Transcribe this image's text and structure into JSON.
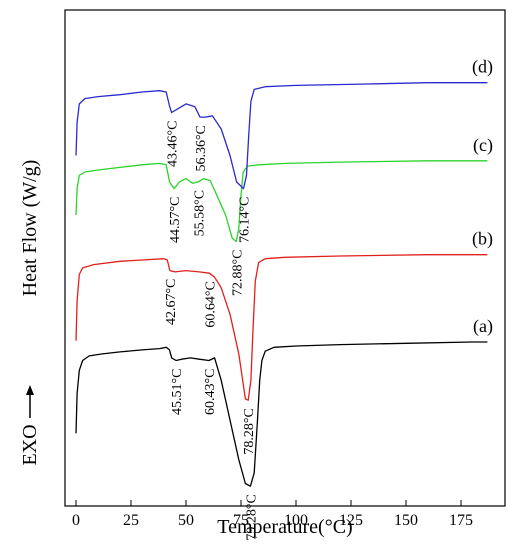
{
  "chart_data": {
    "type": "line",
    "xlabel": "Temperature(°C)",
    "ylabel": "Heat Flow (W/g)",
    "exo_label": "EXO",
    "xlim": [
      -5,
      195
    ],
    "xticks": [
      0,
      25,
      50,
      75,
      100,
      125,
      150,
      175
    ],
    "xtick_labels": [
      "0",
      "25",
      "50",
      "75",
      "100",
      "125",
      "150",
      "175"
    ],
    "y_tick_labels_shown": false,
    "grid": false,
    "legend": "none",
    "series": [
      {
        "name": "(a)",
        "color": "#000000",
        "points": [
          [
            0,
            360
          ],
          [
            0.5,
            420
          ],
          [
            1.5,
            455
          ],
          [
            3,
            470
          ],
          [
            6,
            477
          ],
          [
            12,
            480
          ],
          [
            20,
            483
          ],
          [
            30,
            486
          ],
          [
            38,
            488
          ],
          [
            41,
            490
          ],
          [
            42.5,
            486
          ],
          [
            43.5,
            474
          ],
          [
            45.51,
            470
          ],
          [
            48,
            472
          ],
          [
            52,
            474
          ],
          [
            56,
            472
          ],
          [
            60.43,
            470
          ],
          [
            63,
            474
          ],
          [
            66,
            440
          ],
          [
            70,
            380
          ],
          [
            74,
            320
          ],
          [
            77,
            284
          ],
          [
            79.28,
            280
          ],
          [
            81,
            300
          ],
          [
            82.5,
            380
          ],
          [
            83.5,
            440
          ],
          [
            84.5,
            470
          ],
          [
            86,
            484
          ],
          [
            90,
            490
          ],
          [
            100,
            492
          ],
          [
            120,
            494
          ],
          [
            150,
            496
          ],
          [
            180,
            498
          ],
          [
            187,
            498
          ]
        ]
      },
      {
        "name": "(b)",
        "color": "#e0201b",
        "points": [
          [
            0,
            500
          ],
          [
            0.5,
            560
          ],
          [
            1.5,
            600
          ],
          [
            3,
            610
          ],
          [
            8,
            615
          ],
          [
            20,
            620
          ],
          [
            30,
            622
          ],
          [
            40,
            624
          ],
          [
            41.5,
            622
          ],
          [
            42.67,
            606
          ],
          [
            45,
            604
          ],
          [
            50,
            606
          ],
          [
            56,
            604
          ],
          [
            60.64,
            602
          ],
          [
            63,
            596
          ],
          [
            66,
            580
          ],
          [
            70,
            540
          ],
          [
            74,
            480
          ],
          [
            77,
            412
          ],
          [
            78.28,
            410
          ],
          [
            79.5,
            440
          ],
          [
            80.5,
            520
          ],
          [
            81.5,
            590
          ],
          [
            83,
            618
          ],
          [
            86,
            624
          ],
          [
            95,
            626
          ],
          [
            120,
            628
          ],
          [
            160,
            630
          ],
          [
            187,
            630
          ]
        ]
      },
      {
        "name": "(c)",
        "color": "#2ad42a",
        "points": [
          [
            0,
            690
          ],
          [
            0.5,
            730
          ],
          [
            1.5,
            750
          ],
          [
            4,
            755
          ],
          [
            10,
            758
          ],
          [
            20,
            762
          ],
          [
            30,
            766
          ],
          [
            38,
            768
          ],
          [
            41,
            766
          ],
          [
            42.5,
            740
          ],
          [
            44.57,
            730
          ],
          [
            47,
            740
          ],
          [
            50,
            745
          ],
          [
            53,
            738
          ],
          [
            55.58,
            740
          ],
          [
            58,
            745
          ],
          [
            61,
            742
          ],
          [
            64,
            720
          ],
          [
            68,
            690
          ],
          [
            71,
            655
          ],
          [
            72.88,
            650
          ],
          [
            74,
            670
          ],
          [
            75,
            720
          ],
          [
            76,
            755
          ],
          [
            78,
            764
          ],
          [
            83,
            766
          ],
          [
            95,
            768
          ],
          [
            120,
            770
          ],
          [
            160,
            772
          ],
          [
            187,
            772
          ]
        ]
      },
      {
        "name": "(d)",
        "color": "#2a2ad0",
        "points": [
          [
            0,
            780
          ],
          [
            0.5,
            830
          ],
          [
            1.5,
            858
          ],
          [
            4,
            866
          ],
          [
            10,
            869
          ],
          [
            20,
            872
          ],
          [
            30,
            876
          ],
          [
            38,
            878
          ],
          [
            41,
            876
          ],
          [
            42.5,
            855
          ],
          [
            43.46,
            845
          ],
          [
            46,
            850
          ],
          [
            50,
            858
          ],
          [
            54,
            854
          ],
          [
            56.36,
            838
          ],
          [
            59,
            838
          ],
          [
            62,
            840
          ],
          [
            66,
            820
          ],
          [
            70,
            780
          ],
          [
            73,
            740
          ],
          [
            76.14,
            730
          ],
          [
            77.5,
            750
          ],
          [
            78.5,
            810
          ],
          [
            79.5,
            862
          ],
          [
            81,
            880
          ],
          [
            86,
            884
          ],
          [
            100,
            886
          ],
          [
            130,
            888
          ],
          [
            160,
            890
          ],
          [
            187,
            890
          ]
        ]
      }
    ],
    "annotations": [
      {
        "text": "45.51°C",
        "series": 0,
        "x": 45.51
      },
      {
        "text": "60.43°C",
        "series": 0,
        "x": 60.43
      },
      {
        "text": "79.28°C",
        "series": 0,
        "x": 79.28
      },
      {
        "text": "42.67°C",
        "series": 1,
        "x": 42.67
      },
      {
        "text": "60.64°C",
        "series": 1,
        "x": 60.64
      },
      {
        "text": "78.28°C",
        "series": 1,
        "x": 78.28
      },
      {
        "text": "44.57°C",
        "series": 2,
        "x": 44.57
      },
      {
        "text": "55.58°C",
        "series": 2,
        "x": 55.58
      },
      {
        "text": "72.88°C",
        "series": 2,
        "x": 72.88
      },
      {
        "text": "43.46°C",
        "series": 3,
        "x": 43.46
      },
      {
        "text": "56.36°C",
        "series": 3,
        "x": 56.36
      },
      {
        "text": "76.14°C",
        "series": 3,
        "x": 76.14
      }
    ]
  }
}
